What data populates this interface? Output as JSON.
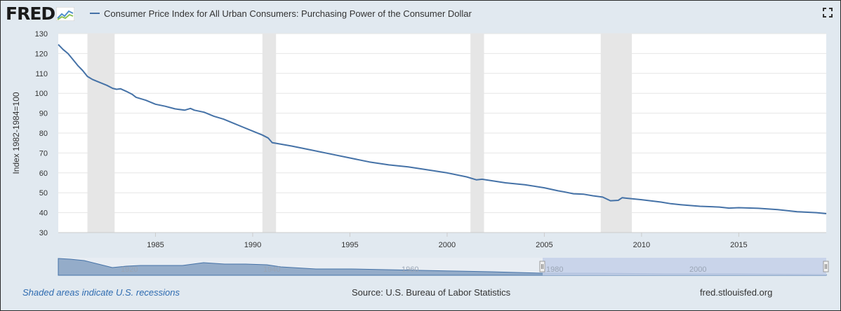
{
  "header": {
    "logo_text": "FRED",
    "title": "Consumer Price Index for All Urban Consumers: Purchasing Power of the Consumer Dollar"
  },
  "footer": {
    "recession_note": "Shaded areas indicate U.S. recessions",
    "source": "Source: U.S. Bureau of Labor Statistics",
    "site": "fred.stlouisfed.org"
  },
  "colors": {
    "series": "#4572a7",
    "recession": "#e6e6e6",
    "background": "#e1e9f0",
    "plot_background": "#ffffff",
    "navigator_fill": "#94acc9",
    "navigator_selected": "#c3cfe8"
  },
  "icons": [
    "fred-logo-icon",
    "fullscreen-icon"
  ],
  "chart_data": {
    "type": "line",
    "title": "Consumer Price Index for All Urban Consumers: Purchasing Power of the Consumer Dollar",
    "xlabel": "",
    "ylabel": "Index 1982-1984=100",
    "xlim": [
      1980,
      2019.5
    ],
    "ylim": [
      30,
      130
    ],
    "yticks": [
      30,
      40,
      50,
      60,
      70,
      80,
      90,
      100,
      110,
      120,
      130
    ],
    "xticks": [
      1985,
      1990,
      1995,
      2000,
      2005,
      2010,
      2015
    ],
    "grid": true,
    "legend": "top-left",
    "recessions": [
      [
        1981.5,
        1982.9
      ],
      [
        1990.5,
        1991.2
      ],
      [
        2001.2,
        2001.9
      ],
      [
        2007.9,
        2009.5
      ]
    ],
    "series": [
      {
        "name": "Consumer Price Index for All Urban Consumers: Purchasing Power of the Consumer Dollar",
        "x": [
          1980.0,
          1980.25,
          1980.5,
          1980.75,
          1981.0,
          1981.25,
          1981.5,
          1981.75,
          1982.0,
          1982.5,
          1982.8,
          1983.0,
          1983.2,
          1983.5,
          1983.8,
          1984.0,
          1984.5,
          1985.0,
          1985.5,
          1986.0,
          1986.5,
          1986.8,
          1987.0,
          1987.5,
          1988.0,
          1988.5,
          1989.0,
          1989.5,
          1990.0,
          1990.5,
          1990.8,
          1991.0,
          1992.0,
          1993.0,
          1994.0,
          1995.0,
          1996.0,
          1997.0,
          1998.0,
          1999.0,
          2000.0,
          2001.0,
          2001.5,
          2001.8,
          2002.0,
          2003.0,
          2004.0,
          2005.0,
          2005.7,
          2006.0,
          2006.5,
          2007.0,
          2007.5,
          2008.0,
          2008.4,
          2008.8,
          2009.0,
          2010.0,
          2011.0,
          2011.5,
          2012.0,
          2013.0,
          2014.0,
          2014.5,
          2015.0,
          2016.0,
          2017.0,
          2018.0,
          2019.0,
          2019.5
        ],
        "values": [
          124.5,
          122,
          120,
          117,
          114,
          111.5,
          108.5,
          107,
          106,
          104,
          102.5,
          102,
          102.3,
          101,
          99.5,
          98,
          96.5,
          94.5,
          93.5,
          92.2,
          91.5,
          92.4,
          91.5,
          90.5,
          88.5,
          87,
          85,
          83,
          81,
          79,
          77.5,
          75.2,
          73.5,
          71.5,
          69.5,
          67.5,
          65.5,
          64,
          63,
          61.5,
          60,
          58,
          56.5,
          56.8,
          56.5,
          55,
          54,
          52.5,
          51,
          50.5,
          49.5,
          49.3,
          48.5,
          47.8,
          46,
          46.2,
          47.5,
          46.5,
          45.3,
          44.5,
          44,
          43.2,
          42.8,
          42.3,
          42.5,
          42.2,
          41.5,
          40.5,
          40,
          39.5
        ]
      }
    ]
  }
}
